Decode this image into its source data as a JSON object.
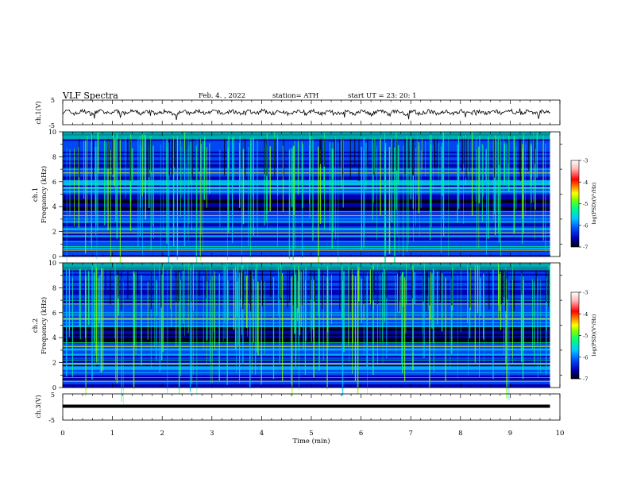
{
  "header": {
    "title": "VLF  Spectra",
    "date": "Feb. 4.  , 2022",
    "station": "station= ATH",
    "start_ut": "start  UT  =    23: 20: 1"
  },
  "colors": {
    "trace": "#000000",
    "colormap": [
      "#000000",
      "#0000b4",
      "#0050ff",
      "#00c8ff",
      "#00ff80",
      "#80ff00",
      "#ffff00",
      "#ff8000",
      "#ff0000",
      "#ffb4b4",
      "#ffffff"
    ]
  },
  "chart_data": [
    {
      "type": "line",
      "ylabel": "ch.1(V)",
      "ylim": [
        -5,
        5
      ],
      "yticks": [
        "5",
        "-5"
      ],
      "series_description": "noisy waveform around 0 V with occasional spikes",
      "xlim": [
        0,
        10
      ]
    },
    {
      "type": "heatmap",
      "ylabel": "ch.1\nFrequency  (kHz)",
      "ylabel_line1": "ch.1",
      "ylabel_line2": "Frequency  (kHz)",
      "ylim": [
        0,
        10
      ],
      "yticks": [
        "0",
        "2",
        "4",
        "6",
        "8",
        "10"
      ],
      "xlim": [
        0,
        10
      ],
      "data_extent_min": 9.8,
      "colorbar": {
        "label": "log(PSD)(V²/Hz)",
        "range": [
          -7,
          -3
        ],
        "ticks": [
          "-3",
          "-4",
          "-5",
          "-6",
          "-7"
        ]
      }
    },
    {
      "type": "heatmap",
      "ylabel_line1": "ch.2",
      "ylabel_line2": "Frequency  (kHz)",
      "ylim": [
        0,
        10
      ],
      "yticks": [
        "0",
        "2",
        "4",
        "6",
        "8",
        "10"
      ],
      "xlim": [
        0,
        10
      ],
      "data_extent_min": 9.8,
      "colorbar": {
        "label": "log(PSD)(V²/Hz)",
        "range": [
          -7,
          -3
        ],
        "ticks": [
          "-3",
          "-4",
          "-5",
          "-6",
          "-7"
        ]
      }
    },
    {
      "type": "line",
      "ylabel": "ch.3(V)",
      "ylim": [
        -5,
        5
      ],
      "yticks": [
        "5",
        "-5"
      ],
      "level": 0,
      "xlim": [
        0,
        10
      ]
    }
  ],
  "xaxis": {
    "label": "Time  (min)",
    "ticks": [
      "0",
      "1",
      "2",
      "3",
      "4",
      "5",
      "6",
      "7",
      "8",
      "9",
      "10"
    ]
  }
}
